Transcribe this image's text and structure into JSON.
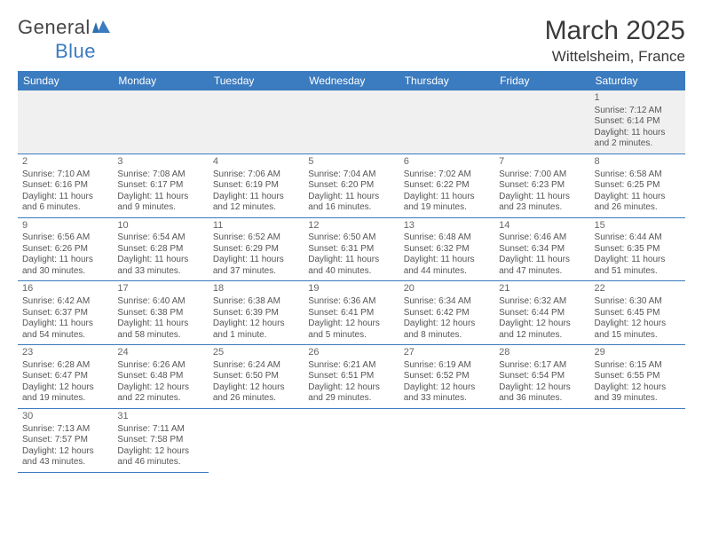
{
  "brand": {
    "part1": "General",
    "part2": "Blue"
  },
  "title": "March 2025",
  "location": "Wittelsheim, France",
  "day_headers": [
    "Sunday",
    "Monday",
    "Tuesday",
    "Wednesday",
    "Thursday",
    "Friday",
    "Saturday"
  ],
  "colors": {
    "accent": "#3b7bbf",
    "text": "#4a4a4a",
    "row_alt": "#f0f0f0"
  },
  "weeks": [
    [
      null,
      null,
      null,
      null,
      null,
      null,
      {
        "n": "1",
        "sr": "7:12 AM",
        "ss": "6:14 PM",
        "dl": "11 hours and 2 minutes."
      }
    ],
    [
      {
        "n": "2",
        "sr": "7:10 AM",
        "ss": "6:16 PM",
        "dl": "11 hours and 6 minutes."
      },
      {
        "n": "3",
        "sr": "7:08 AM",
        "ss": "6:17 PM",
        "dl": "11 hours and 9 minutes."
      },
      {
        "n": "4",
        "sr": "7:06 AM",
        "ss": "6:19 PM",
        "dl": "11 hours and 12 minutes."
      },
      {
        "n": "5",
        "sr": "7:04 AM",
        "ss": "6:20 PM",
        "dl": "11 hours and 16 minutes."
      },
      {
        "n": "6",
        "sr": "7:02 AM",
        "ss": "6:22 PM",
        "dl": "11 hours and 19 minutes."
      },
      {
        "n": "7",
        "sr": "7:00 AM",
        "ss": "6:23 PM",
        "dl": "11 hours and 23 minutes."
      },
      {
        "n": "8",
        "sr": "6:58 AM",
        "ss": "6:25 PM",
        "dl": "11 hours and 26 minutes."
      }
    ],
    [
      {
        "n": "9",
        "sr": "6:56 AM",
        "ss": "6:26 PM",
        "dl": "11 hours and 30 minutes."
      },
      {
        "n": "10",
        "sr": "6:54 AM",
        "ss": "6:28 PM",
        "dl": "11 hours and 33 minutes."
      },
      {
        "n": "11",
        "sr": "6:52 AM",
        "ss": "6:29 PM",
        "dl": "11 hours and 37 minutes."
      },
      {
        "n": "12",
        "sr": "6:50 AM",
        "ss": "6:31 PM",
        "dl": "11 hours and 40 minutes."
      },
      {
        "n": "13",
        "sr": "6:48 AM",
        "ss": "6:32 PM",
        "dl": "11 hours and 44 minutes."
      },
      {
        "n": "14",
        "sr": "6:46 AM",
        "ss": "6:34 PM",
        "dl": "11 hours and 47 minutes."
      },
      {
        "n": "15",
        "sr": "6:44 AM",
        "ss": "6:35 PM",
        "dl": "11 hours and 51 minutes."
      }
    ],
    [
      {
        "n": "16",
        "sr": "6:42 AM",
        "ss": "6:37 PM",
        "dl": "11 hours and 54 minutes."
      },
      {
        "n": "17",
        "sr": "6:40 AM",
        "ss": "6:38 PM",
        "dl": "11 hours and 58 minutes."
      },
      {
        "n": "18",
        "sr": "6:38 AM",
        "ss": "6:39 PM",
        "dl": "12 hours and 1 minute."
      },
      {
        "n": "19",
        "sr": "6:36 AM",
        "ss": "6:41 PM",
        "dl": "12 hours and 5 minutes."
      },
      {
        "n": "20",
        "sr": "6:34 AM",
        "ss": "6:42 PM",
        "dl": "12 hours and 8 minutes."
      },
      {
        "n": "21",
        "sr": "6:32 AM",
        "ss": "6:44 PM",
        "dl": "12 hours and 12 minutes."
      },
      {
        "n": "22",
        "sr": "6:30 AM",
        "ss": "6:45 PM",
        "dl": "12 hours and 15 minutes."
      }
    ],
    [
      {
        "n": "23",
        "sr": "6:28 AM",
        "ss": "6:47 PM",
        "dl": "12 hours and 19 minutes."
      },
      {
        "n": "24",
        "sr": "6:26 AM",
        "ss": "6:48 PM",
        "dl": "12 hours and 22 minutes."
      },
      {
        "n": "25",
        "sr": "6:24 AM",
        "ss": "6:50 PM",
        "dl": "12 hours and 26 minutes."
      },
      {
        "n": "26",
        "sr": "6:21 AM",
        "ss": "6:51 PM",
        "dl": "12 hours and 29 minutes."
      },
      {
        "n": "27",
        "sr": "6:19 AM",
        "ss": "6:52 PM",
        "dl": "12 hours and 33 minutes."
      },
      {
        "n": "28",
        "sr": "6:17 AM",
        "ss": "6:54 PM",
        "dl": "12 hours and 36 minutes."
      },
      {
        "n": "29",
        "sr": "6:15 AM",
        "ss": "6:55 PM",
        "dl": "12 hours and 39 minutes."
      }
    ],
    [
      {
        "n": "30",
        "sr": "7:13 AM",
        "ss": "7:57 PM",
        "dl": "12 hours and 43 minutes."
      },
      {
        "n": "31",
        "sr": "7:11 AM",
        "ss": "7:58 PM",
        "dl": "12 hours and 46 minutes."
      },
      null,
      null,
      null,
      null,
      null
    ]
  ],
  "labels": {
    "sunrise": "Sunrise:",
    "sunset": "Sunset:",
    "daylight": "Daylight:"
  }
}
